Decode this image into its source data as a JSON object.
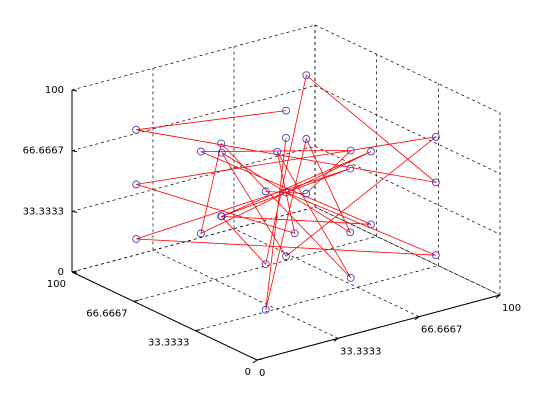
{
  "chart_data": {
    "type": "line3d",
    "xlim": [
      0,
      100
    ],
    "ylim": [
      0,
      100
    ],
    "zlim": [
      0,
      100
    ],
    "xticks": [
      0,
      33.3333,
      66.6667,
      100
    ],
    "yticks": [
      0,
      33.3333,
      66.6667,
      100
    ],
    "zticks": [
      0,
      33.3333,
      66.6667,
      100
    ],
    "grid": true,
    "series": [
      {
        "color": "#ff0000",
        "marker_color": "#3030c0",
        "x": [
          50,
          15,
          85,
          85,
          15,
          50,
          85,
          15,
          50,
          85,
          15,
          50,
          85,
          15,
          65,
          35,
          85,
          15,
          50,
          50,
          35,
          65,
          15,
          85,
          50,
          35,
          65,
          85,
          15,
          50
        ],
        "y": [
          50,
          85,
          15,
          85,
          15,
          85,
          50,
          50,
          15,
          85,
          15,
          50,
          15,
          85,
          35,
          65,
          50,
          50,
          85,
          15,
          35,
          65,
          85,
          15,
          50,
          65,
          35,
          85,
          15,
          50
        ],
        "z": [
          95,
          80,
          60,
          85,
          40,
          20,
          20,
          85,
          90,
          20,
          80,
          50,
          20,
          20,
          65,
          35,
          60,
          40,
          60,
          20,
          85,
          15,
          50,
          85,
          15,
          70,
          30,
          50,
          15,
          80
        ]
      }
    ]
  }
}
